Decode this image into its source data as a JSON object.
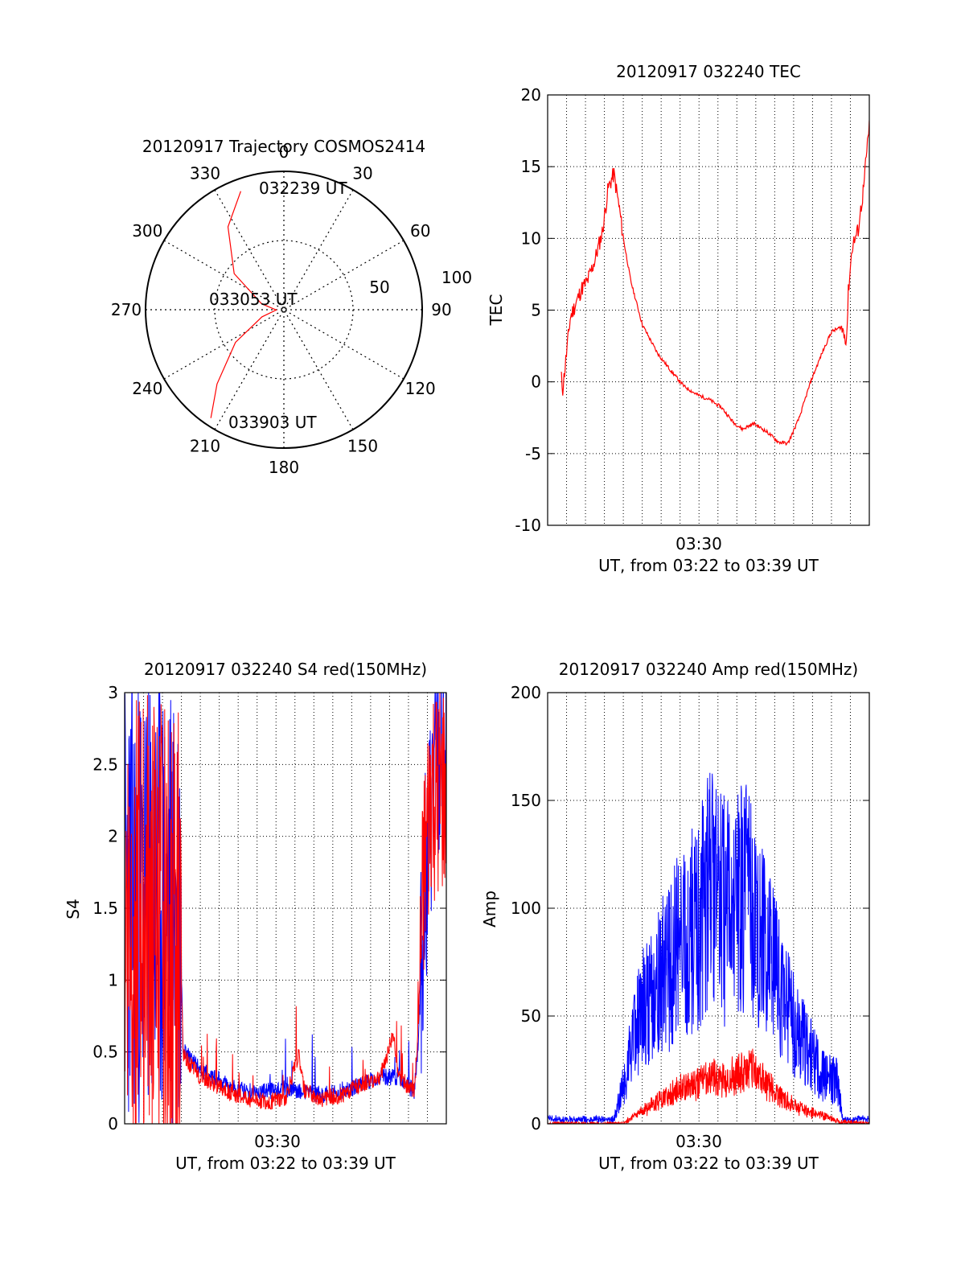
{
  "chart_data": [
    {
      "id": "trajectory",
      "type": "polar",
      "title": "20120917 Trajectory COSMOS2414",
      "azimuth_labels": [
        "0",
        "30",
        "60",
        "90",
        "120",
        "150",
        "180",
        "210",
        "240",
        "270",
        "300",
        "330"
      ],
      "elevation_ring_labels": [
        "50",
        "100"
      ],
      "time_labels": {
        "start": "032239 UT",
        "middle": "033053 UT",
        "end": "033903 UT"
      },
      "track": [
        {
          "az": 340,
          "el": 8
        },
        {
          "az": 326,
          "el": 25
        },
        {
          "az": 306,
          "el": 50
        },
        {
          "az": 285,
          "el": 75
        },
        {
          "az": 268,
          "el": 85
        },
        {
          "az": 252,
          "el": 75
        },
        {
          "az": 236,
          "el": 52
        },
        {
          "az": 222,
          "el": 25
        },
        {
          "az": 214,
          "el": 5
        }
      ],
      "line_color": "#ff0000"
    },
    {
      "id": "tec",
      "type": "line",
      "title": "20120917 032240 TEC",
      "ylabel": "TEC",
      "xlabel": "UT, from 03:22 to 03:39 UT",
      "x_tick_label": "03:30",
      "ylim": [
        -10,
        20
      ],
      "yticks": [
        "20",
        "15",
        "10",
        "5",
        "0",
        "-5",
        "-10"
      ],
      "x_minutes_range": [
        22,
        39
      ],
      "series": [
        {
          "color": "#ff0000",
          "x_minutes": [
            22.7,
            22.8,
            23.0,
            23.2,
            23.5,
            23.8,
            24.1,
            24.5,
            24.9,
            25.2,
            25.5,
            25.8,
            26.0,
            26.4,
            27.0,
            27.8,
            28.5,
            29.2,
            29.9,
            30.5,
            31.2,
            31.8,
            32.3,
            32.9,
            33.6,
            34.2,
            34.7,
            35.3,
            35.9,
            36.5,
            37.0,
            37.5,
            37.8,
            37.9,
            38.1,
            38.4,
            38.7,
            39.0
          ],
          "y": [
            0.5,
            -0.5,
            2.0,
            4.5,
            5.5,
            6.5,
            7.0,
            8.5,
            10.5,
            13.5,
            14.5,
            12.0,
            10.0,
            7.0,
            4.0,
            2.0,
            0.8,
            -0.3,
            -0.9,
            -1.2,
            -1.8,
            -2.8,
            -3.3,
            -2.9,
            -3.5,
            -4.2,
            -4.3,
            -2.5,
            0.0,
            2.0,
            3.5,
            3.8,
            3.0,
            6.5,
            9.5,
            10.5,
            13.5,
            18.0
          ]
        }
      ]
    },
    {
      "id": "s4",
      "type": "line",
      "title": "20120917 032240 S4 red(150MHz)",
      "ylabel": "S4",
      "xlabel": "UT, from 03:22 to 03:39 UT",
      "x_tick_label": "03:30",
      "ylim": [
        0,
        3
      ],
      "yticks": [
        "3",
        "2.5",
        "2",
        "1.5",
        "1",
        "0.5",
        "0"
      ],
      "x_minutes_range": [
        22,
        39
      ],
      "series": [
        {
          "color": "#0000ff",
          "x_minutes": [
            22.0,
            24.9,
            25.1,
            26.0,
            27.5,
            28.5,
            29.5,
            30.5,
            31.5,
            32.5,
            33.5,
            34.5,
            35.5,
            36.5,
            37.3,
            37.5,
            37.8,
            38.2,
            38.5,
            39.0
          ],
          "y": [
            1.6,
            1.5,
            0.5,
            0.35,
            0.25,
            0.2,
            0.2,
            0.22,
            0.2,
            0.18,
            0.2,
            0.25,
            0.3,
            0.3,
            0.2,
            0.5,
            1.5,
            2.2,
            2.5,
            2.4
          ]
        },
        {
          "color": "#ff0000",
          "x_minutes": [
            22.0,
            24.9,
            25.1,
            26.0,
            27.5,
            28.5,
            29.5,
            30.5,
            31.2,
            31.5,
            32.5,
            33.5,
            34.5,
            35.5,
            36.2,
            36.5,
            37.3,
            37.5,
            37.8,
            38.2,
            38.5,
            39.0
          ],
          "y": [
            1.5,
            1.3,
            0.45,
            0.3,
            0.2,
            0.15,
            0.13,
            0.15,
            0.45,
            0.2,
            0.15,
            0.18,
            0.25,
            0.3,
            0.6,
            0.3,
            0.2,
            0.6,
            1.6,
            2.3,
            2.2,
            2.3
          ]
        }
      ]
    },
    {
      "id": "amp",
      "type": "line",
      "title": "20120917 032240 Amp red(150MHz)",
      "ylabel": "Amp",
      "xlabel": "UT, from 03:22 to 03:39 UT",
      "x_tick_label": "03:30",
      "ylim": [
        0,
        200
      ],
      "yticks": [
        "200",
        "150",
        "100",
        "50",
        "0"
      ],
      "x_minutes_range": [
        22,
        39
      ],
      "series": [
        {
          "color": "#0000ff",
          "x_minutes": [
            22.0,
            25.5,
            26.2,
            26.8,
            27.5,
            28.2,
            28.8,
            29.5,
            30.0,
            30.6,
            31.2,
            31.8,
            32.4,
            33.0,
            33.6,
            34.2,
            34.8,
            35.4,
            36.0,
            36.6,
            37.3,
            37.6,
            39.0
          ],
          "y": [
            2,
            2,
            25,
            50,
            60,
            70,
            80,
            88,
            92,
            110,
            100,
            95,
            105,
            90,
            80,
            65,
            50,
            40,
            30,
            22,
            20,
            2,
            2
          ]
        },
        {
          "color": "#ff0000",
          "x_minutes": [
            22.0,
            26.0,
            26.6,
            27.4,
            28.2,
            29.0,
            29.8,
            30.6,
            31.4,
            32.2,
            32.8,
            33.6,
            34.4,
            35.2,
            36.0,
            36.8,
            37.4,
            39.0
          ],
          "y": [
            0,
            0,
            4,
            8,
            12,
            16,
            18,
            22,
            20,
            24,
            26,
            18,
            12,
            8,
            5,
            3,
            1,
            0
          ]
        }
      ]
    }
  ]
}
